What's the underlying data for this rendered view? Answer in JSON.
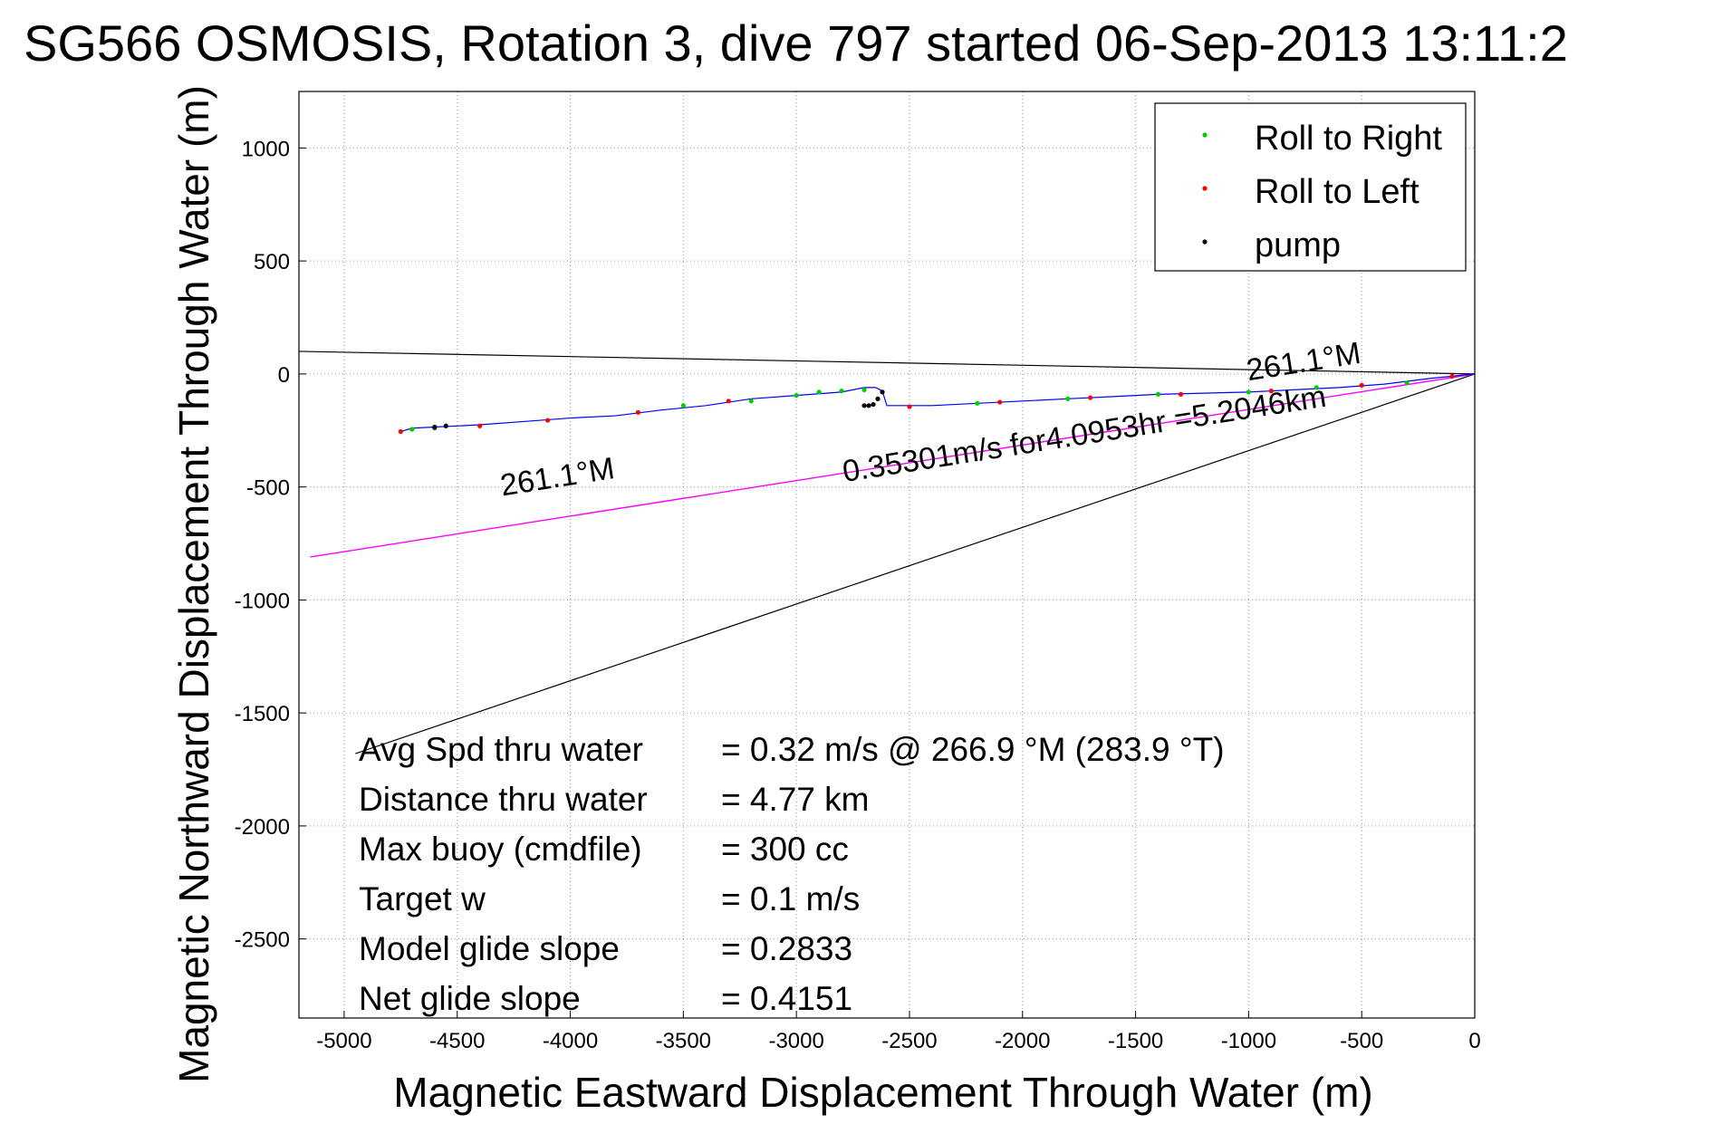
{
  "chart_data": {
    "type": "scatter",
    "title": "SG566 OSMOSIS, Rotation 3, dive 797 started 06-Sep-2013 13:11:2",
    "xlabel": "Magnetic Eastward Displacement Through Water (m)",
    "ylabel": "Magnetic Northward Displacement Through Water (m)",
    "xlim": [
      -5200,
      0
    ],
    "ylim": [
      -2850,
      1250
    ],
    "xticks": [
      -5000,
      -4500,
      -4000,
      -3500,
      -3000,
      -2500,
      -2000,
      -1500,
      -1000,
      -500,
      0
    ],
    "yticks": [
      1000,
      500,
      0,
      -500,
      -1000,
      -1500,
      -2000,
      -2500
    ],
    "grid": true,
    "legend_position": "top-right",
    "colors": {
      "track": "#0000ff",
      "roll_right": "#00cc00",
      "roll_left": "#ff0000",
      "pump": "#000000",
      "avg_line": "#ff00ff",
      "reference": "#000000"
    },
    "legend": [
      {
        "label": "Roll to Right",
        "color": "#00cc00"
      },
      {
        "label": "Roll to Left",
        "color": "#ff0000"
      },
      {
        "label": "pump",
        "color": "#000000"
      }
    ],
    "track": {
      "x": [
        0,
        -200,
        -400,
        -600,
        -800,
        -1000,
        -1200,
        -1400,
        -1600,
        -1800,
        -2000,
        -2200,
        -2400,
        -2600,
        -2620,
        -2650,
        -2700,
        -2800,
        -3000,
        -3200,
        -3400,
        -3600,
        -3800,
        -4000,
        -4200,
        -4400,
        -4600,
        -4700,
        -4750
      ],
      "y": [
        0,
        -20,
        -45,
        -60,
        -70,
        -80,
        -85,
        -90,
        -100,
        -110,
        -120,
        -130,
        -140,
        -140,
        -75,
        -60,
        -60,
        -80,
        -95,
        -110,
        -140,
        -160,
        -185,
        -195,
        -210,
        -225,
        -235,
        -240,
        -255
      ]
    },
    "roll_right": {
      "x": [
        -300,
        -700,
        -1000,
        -1400,
        -1800,
        -2200,
        -2700,
        -2800,
        -2900,
        -3000,
        -3200,
        -3500,
        -4600,
        -4700
      ],
      "y": [
        -40,
        -60,
        -80,
        -90,
        -110,
        -130,
        -70,
        -75,
        -80,
        -95,
        -120,
        -140,
        -240,
        -245
      ]
    },
    "roll_left": {
      "x": [
        -100,
        -500,
        -900,
        -1300,
        -1700,
        -2100,
        -2500,
        -3300,
        -3700,
        -4100,
        -4400,
        -4750
      ],
      "y": [
        -10,
        -50,
        -75,
        -90,
        -105,
        -125,
        -145,
        -120,
        -170,
        -205,
        -230,
        -255
      ]
    },
    "pump": {
      "x": [
        -2620,
        -2640,
        -2660,
        -2680,
        -2700,
        -4550,
        -4600
      ],
      "y": [
        -80,
        -110,
        -135,
        -140,
        -140,
        -230,
        -235
      ]
    },
    "avg_line": {
      "x": [
        0,
        -5150
      ],
      "y": [
        0,
        -810
      ]
    },
    "reference_lines": [
      {
        "x": [
          0,
          -5200
        ],
        "y": [
          0,
          100
        ]
      },
      {
        "x": [
          0,
          -4950
        ],
        "y": [
          0,
          -1680
        ]
      }
    ],
    "annotations": [
      {
        "text": "261.1°M",
        "x": -4050,
        "y": -500,
        "rotation": 180
      },
      {
        "text": "261.1°M",
        "x": -750,
        "y": 10,
        "rotation": 180
      },
      {
        "text": "0.35301m/s for4.0953hr =5.2046km",
        "x": -1720,
        "y": -310,
        "rotation": 180
      }
    ],
    "stats": [
      {
        "label": "Avg Spd thru water",
        "value": "=  0.32 m/s @ 266.9 °M (283.9 °T)"
      },
      {
        "label": "Distance thru water",
        "value": "=  4.77 km"
      },
      {
        "label": "Max buoy (cmdfile)",
        "value": "= 300 cc"
      },
      {
        "label": "Target w",
        "value": "= 0.1 m/s"
      },
      {
        "label": "Model glide slope",
        "value": "= 0.2833"
      },
      {
        "label": "Net glide slope",
        "value": "= 0.4151"
      }
    ]
  }
}
